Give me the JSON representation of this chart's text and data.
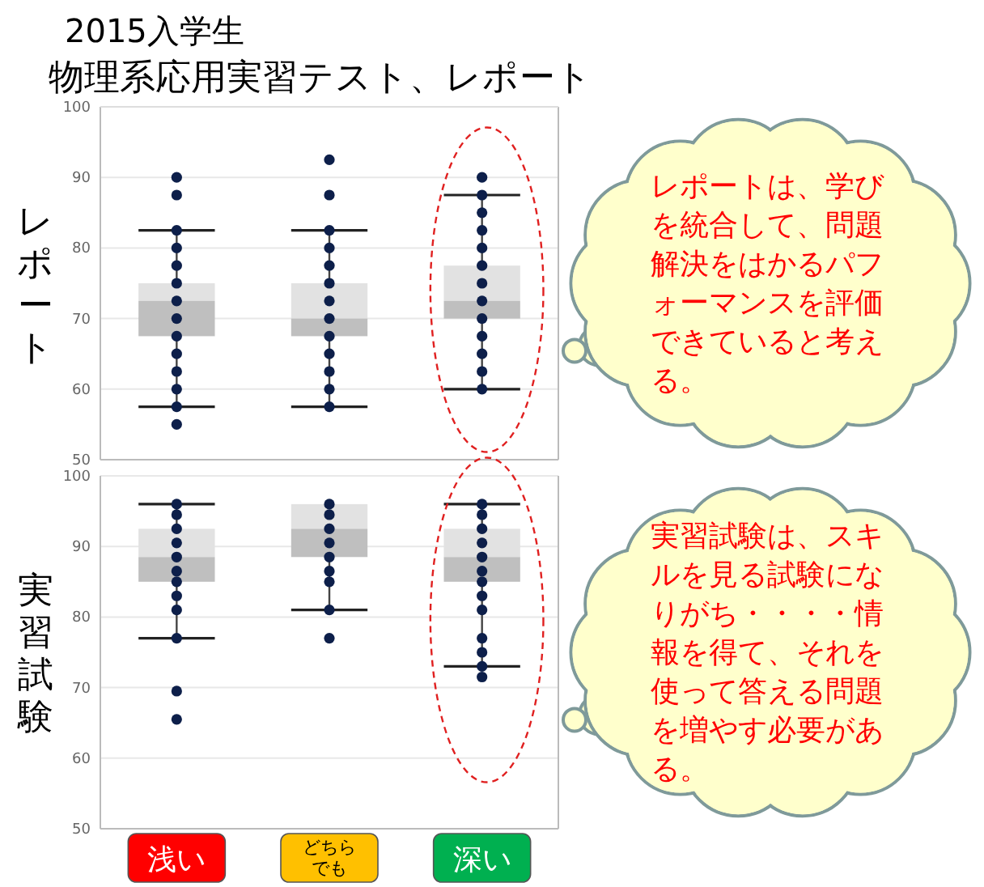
{
  "chart_data": [
    {
      "type": "box",
      "title": "2015入学生",
      "subtitle": "物理系応用実習テスト、レポート",
      "ylabel": "レポート",
      "categories": [
        "浅い",
        "どちらでも",
        "深い"
      ],
      "ylim": [
        50,
        100
      ],
      "yticks": [
        50,
        60,
        70,
        80,
        90,
        100
      ],
      "grid": "y",
      "tick_labels": "y",
      "series": [
        {
          "type": "box",
          "color": "#bfbfbf",
          "boxes": [
            {
              "low": 57.5,
              "q1": 67.5,
              "median": 72.5,
              "q3": 75,
              "high": 82.5
            },
            {
              "low": 57.5,
              "q1": 67.5,
              "median": 70,
              "q3": 75,
              "high": 82.5
            },
            {
              "low": 60,
              "q1": 70,
              "median": 72.5,
              "q3": 77.5,
              "high": 87.5
            }
          ]
        },
        {
          "type": "scatter",
          "color": "#0d1f4a",
          "x": [
            "浅い",
            "浅い",
            "浅い",
            "浅い",
            "浅い",
            "浅い",
            "浅い",
            "浅い",
            "浅い",
            "浅い",
            "浅い",
            "浅い",
            "浅い",
            "浅い",
            "どちらでも",
            "どちらでも",
            "どちらでも",
            "どちらでも",
            "どちらでも",
            "どちらでも",
            "どちらでも",
            "どちらでも",
            "どちらでも",
            "どちらでも",
            "どちらでも",
            "どちらでも",
            "どちらでも",
            "深い",
            "深い",
            "深い",
            "深い",
            "深い",
            "深い",
            "深い",
            "深い",
            "深い",
            "深い",
            "深い",
            "深い",
            "深い"
          ],
          "values": [
            90,
            87.5,
            82.5,
            80,
            77.5,
            75,
            72.5,
            70,
            67.5,
            65,
            62.5,
            60,
            57.5,
            55,
            92.5,
            87.5,
            82.5,
            80,
            77.5,
            75,
            72.5,
            70,
            67.5,
            65,
            62.5,
            60,
            57.5,
            90,
            87.5,
            85,
            82.5,
            80,
            77.5,
            75,
            72.5,
            70,
            67.5,
            65,
            62.5,
            60
          ]
        }
      ],
      "annotations": [
        "レポートは、学びを統合して、問題解決をはかるパフォーマンスを評価できていると考える。"
      ]
    },
    {
      "type": "box",
      "ylabel": "実習試験",
      "categories": [
        "浅い",
        "どちらでも",
        "深い"
      ],
      "ylim": [
        50,
        100
      ],
      "yticks": [
        50,
        60,
        70,
        80,
        90,
        100
      ],
      "grid": "y",
      "series": [
        {
          "type": "box",
          "color": "#bfbfbf",
          "boxes": [
            {
              "low": 77,
              "q1": 85,
              "median": 88.5,
              "q3": 92.5,
              "high": 96
            },
            {
              "low": 81,
              "q1": 88.5,
              "median": 92.5,
              "q3": 96,
              "high": 96
            },
            {
              "low": 73,
              "q1": 85,
              "median": 88.5,
              "q3": 92.5,
              "high": 96
            }
          ]
        },
        {
          "type": "scatter",
          "color": "#0d1f4a",
          "x": [
            "浅い",
            "浅い",
            "浅い",
            "浅い",
            "浅い",
            "浅い",
            "浅い",
            "浅い",
            "浅い",
            "浅い",
            "浅い",
            "浅い",
            "どちらでも",
            "どちらでも",
            "どちらでも",
            "どちらでも",
            "どちらでも",
            "どちらでも",
            "どちらでも",
            "どちらでも",
            "どちらでも",
            "深い",
            "深い",
            "深い",
            "深い",
            "深い",
            "深い",
            "深い",
            "深い",
            "深い",
            "深い",
            "深い",
            "深い",
            "深い"
          ],
          "values": [
            96,
            94.5,
            92.5,
            90.5,
            88.5,
            86.5,
            85,
            83,
            81,
            77,
            69.5,
            65.5,
            96,
            94.5,
            92.5,
            90.5,
            88.5,
            86.5,
            85,
            81,
            77,
            96,
            94.5,
            92.5,
            90.5,
            88.5,
            86.5,
            85,
            83,
            81,
            77,
            75,
            73,
            71.5
          ]
        }
      ],
      "annotations": [
        "実習試験は、スキルを見る試験になりがち・・・・情報を得て、それを使って答える問題を増やす必要がある。"
      ]
    }
  ]
}
